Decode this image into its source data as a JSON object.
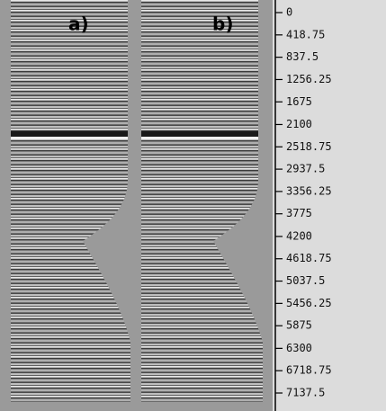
{
  "panels": [
    {
      "label": "a)"
    },
    {
      "label": "b)"
    }
  ],
  "axis": {
    "ticks": [
      0,
      418.75,
      837.5,
      1256.25,
      1675,
      2100,
      2518.75,
      2937.5,
      3356.25,
      3775,
      4200,
      4618.75,
      5037.5,
      5456.25,
      5875,
      6300,
      6718.75,
      7137.5
    ]
  }
}
